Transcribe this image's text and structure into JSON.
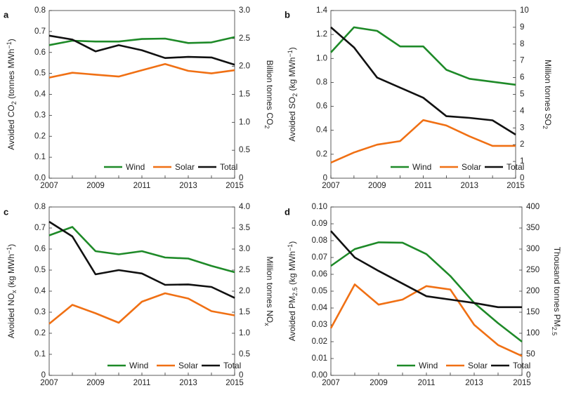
{
  "colors": {
    "wind": "#1e8a28",
    "solar": "#f07014",
    "total": "#111111"
  },
  "chart_data": [
    {
      "panel": "a",
      "type": "line",
      "x": [
        2007,
        2008,
        2009,
        2010,
        2011,
        2012,
        2013,
        2014,
        2015
      ],
      "xticks": [
        "2007",
        "2009",
        "2011",
        "2013",
        "2015"
      ],
      "xlim": [
        2007,
        2015
      ],
      "ylabel_left": [
        "Avoided CO",
        "2",
        " (tonnes MWh",
        "−1",
        ")"
      ],
      "ylabel_right": [
        "Billion tonnes CO",
        "2"
      ],
      "ylim_left": [
        0,
        0.8
      ],
      "ylim_right": [
        0,
        3.0
      ],
      "yticks_left": [
        "0.0",
        "0.1",
        "0.2",
        "0.3",
        "0.4",
        "0.5",
        "0.6",
        "0.7",
        "0.8"
      ],
      "yticks_right": [
        "0",
        "0.5",
        "1.0",
        "1.5",
        "2.0",
        "2.5",
        "3.0"
      ],
      "series": [
        {
          "name": "Wind",
          "axis": "left",
          "values": [
            0.635,
            0.656,
            0.652,
            0.652,
            0.664,
            0.666,
            0.645,
            0.648,
            0.673
          ]
        },
        {
          "name": "Solar",
          "axis": "left",
          "values": [
            0.48,
            0.503,
            0.494,
            0.485,
            0.515,
            0.545,
            0.512,
            0.5,
            0.515
          ]
        },
        {
          "name": "Total",
          "axis": "right",
          "values": [
            2.55,
            2.48,
            2.27,
            2.38,
            2.29,
            2.15,
            2.17,
            2.16,
            2.03
          ]
        }
      ]
    },
    {
      "panel": "b",
      "type": "line",
      "x": [
        2007,
        2008,
        2009,
        2010,
        2011,
        2012,
        2013,
        2014,
        2015
      ],
      "xticks": [
        "2007",
        "2009",
        "2011",
        "2013",
        "2015"
      ],
      "xlim": [
        2007,
        2015
      ],
      "ylabel_left": [
        "Avoided SO",
        "2",
        " (kg MWh",
        "−1",
        ")"
      ],
      "ylabel_right": [
        "Million tonnes SO",
        "2"
      ],
      "ylim_left": [
        0,
        1.4
      ],
      "ylim_right": [
        0,
        10
      ],
      "yticks_left": [
        "0",
        "0.2",
        "0.4",
        "0.6",
        "0.8",
        "1.0",
        "1.2",
        "1.4"
      ],
      "yticks_right": [
        "0",
        "1",
        "2",
        "3",
        "4",
        "5",
        "6",
        "7",
        "8",
        "9",
        "10"
      ],
      "series": [
        {
          "name": "Wind",
          "axis": "left",
          "values": [
            1.05,
            1.26,
            1.23,
            1.1,
            1.1,
            0.905,
            0.83,
            0.805,
            0.78
          ]
        },
        {
          "name": "Solar",
          "axis": "left",
          "values": [
            0.13,
            0.215,
            0.28,
            0.31,
            0.485,
            0.44,
            0.35,
            0.27,
            0.27
          ]
        },
        {
          "name": "Total",
          "axis": "right",
          "values": [
            9.0,
            7.8,
            6.0,
            5.4,
            4.8,
            3.7,
            3.6,
            3.45,
            2.6
          ]
        }
      ]
    },
    {
      "panel": "c",
      "type": "line",
      "x": [
        2007,
        2008,
        2009,
        2010,
        2011,
        2012,
        2013,
        2014,
        2015
      ],
      "xticks": [
        "2007",
        "2009",
        "2011",
        "2013",
        "2015"
      ],
      "xlim": [
        2007,
        2015
      ],
      "ylabel_left": [
        "Avoided NO",
        "x",
        " (kg MWh",
        "−1",
        ")"
      ],
      "ylabel_right": [
        "Million tonnes NO",
        "x"
      ],
      "ylim_left": [
        0,
        0.8
      ],
      "ylim_right": [
        0,
        4.0
      ],
      "yticks_left": [
        "0",
        "0.1",
        "0.2",
        "0.3",
        "0.4",
        "0.5",
        "0.6",
        "0.7",
        "0.8"
      ],
      "yticks_right": [
        "0",
        "0.5",
        "1.0",
        "1.5",
        "2.0",
        "2.5",
        "3.0",
        "3.5",
        "4.0"
      ],
      "series": [
        {
          "name": "Wind",
          "axis": "left",
          "values": [
            0.665,
            0.705,
            0.59,
            0.575,
            0.59,
            0.56,
            0.555,
            0.52,
            0.49
          ]
        },
        {
          "name": "Solar",
          "axis": "left",
          "values": [
            0.245,
            0.335,
            0.295,
            0.25,
            0.35,
            0.39,
            0.365,
            0.305,
            0.285
          ]
        },
        {
          "name": "Total",
          "axis": "right",
          "values": [
            3.65,
            3.3,
            2.4,
            2.5,
            2.42,
            2.15,
            2.16,
            2.1,
            1.84
          ]
        }
      ]
    },
    {
      "panel": "d",
      "type": "line",
      "x": [
        2007,
        2008,
        2009,
        2010,
        2011,
        2012,
        2013,
        2014,
        2015
      ],
      "xticks": [
        "2007",
        "2009",
        "2011",
        "2013",
        "2015"
      ],
      "xlim": [
        2007,
        2015
      ],
      "ylabel_left": [
        "Avoided PM",
        "2.5",
        " (kg MWh",
        "−1",
        ")"
      ],
      "ylabel_right": [
        "Thousand tonnes PM",
        "2.5"
      ],
      "ylim_left": [
        0,
        0.1
      ],
      "ylim_right": [
        0,
        400
      ],
      "yticks_left": [
        "0.00",
        "0.01",
        "0.02",
        "0.03",
        "0.04",
        "0.05",
        "0.06",
        "0.07",
        "0.08",
        "0.09",
        "0.10"
      ],
      "yticks_right": [
        "0",
        "50",
        "100",
        "150",
        "200",
        "250",
        "300",
        "350",
        "400"
      ],
      "series": [
        {
          "name": "Wind",
          "axis": "left",
          "values": [
            0.065,
            0.075,
            0.079,
            0.0788,
            0.072,
            0.059,
            0.043,
            0.031,
            0.02
          ]
        },
        {
          "name": "Solar",
          "axis": "left",
          "values": [
            0.028,
            0.054,
            0.042,
            0.045,
            0.053,
            0.051,
            0.03,
            0.018,
            0.0115
          ]
        },
        {
          "name": "Total",
          "axis": "right",
          "values": [
            343,
            280,
            248,
            218,
            188,
            180,
            172,
            162,
            162
          ]
        }
      ]
    }
  ]
}
